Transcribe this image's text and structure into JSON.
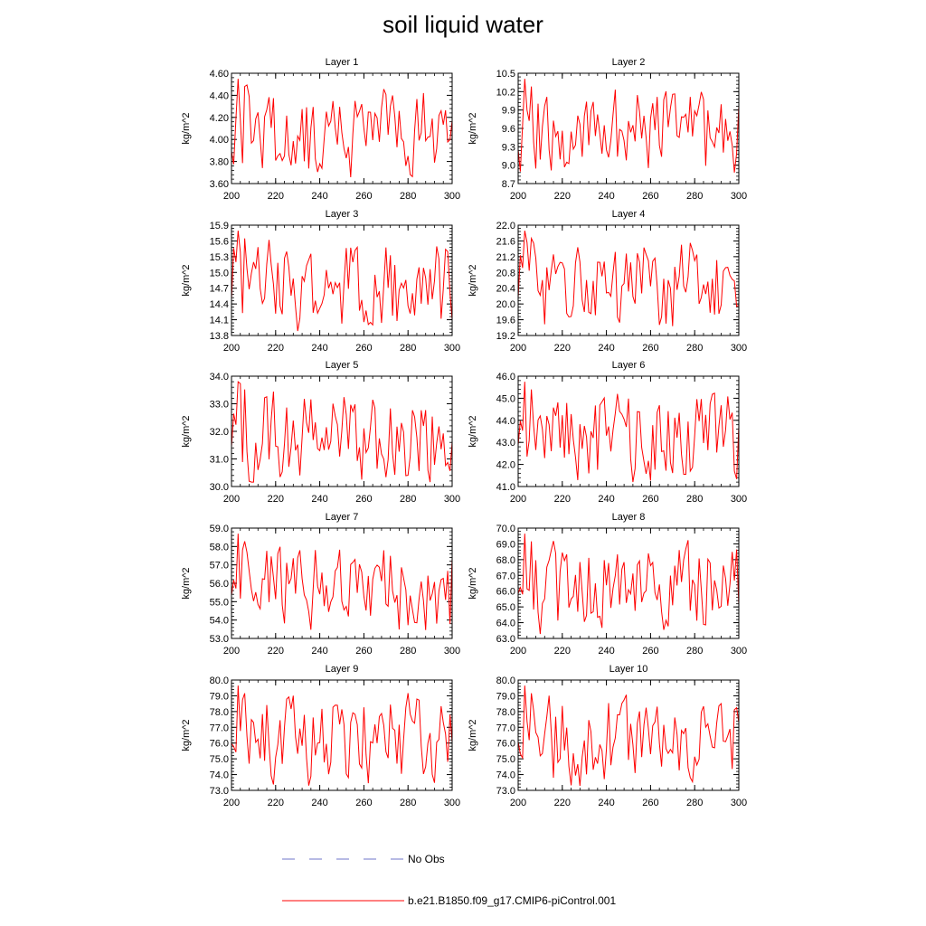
{
  "title": "soil liquid water",
  "legend": [
    {
      "label": "No Obs",
      "color": "#6f74c9",
      "style": "dashed"
    },
    {
      "label": "b.e21.B1850.f09_g17.CMIP6-piControl.001",
      "color": "#ff0000",
      "style": "solid"
    }
  ],
  "chart_data": [
    {
      "type": "line",
      "title": "Layer 1",
      "ylabel": "kg/m^2",
      "xlim": [
        200,
        300
      ],
      "xticks": [
        200,
        220,
        240,
        260,
        280,
        300
      ],
      "ylim": [
        3.6,
        4.6
      ],
      "yticks": [
        "3.60",
        "3.80",
        "4.00",
        "4.20",
        "4.40",
        "4.60"
      ],
      "series": [
        {
          "name": "b.e21.B1850.f09_g17.CMIP6-piControl.001",
          "seed": 1
        }
      ]
    },
    {
      "type": "line",
      "title": "Layer 2",
      "ylabel": "kg/m^2",
      "xlim": [
        200,
        300
      ],
      "xticks": [
        200,
        220,
        240,
        260,
        280,
        300
      ],
      "ylim": [
        8.7,
        10.5
      ],
      "yticks": [
        "8.7",
        "9.0",
        "9.3",
        "9.6",
        "9.9",
        "10.2",
        "10.5"
      ],
      "series": [
        {
          "name": "b.e21.B1850.f09_g17.CMIP6-piControl.001",
          "seed": 2
        }
      ]
    },
    {
      "type": "line",
      "title": "Layer 3",
      "ylabel": "kg/m^2",
      "xlim": [
        200,
        300
      ],
      "xticks": [
        200,
        220,
        240,
        260,
        280,
        300
      ],
      "ylim": [
        13.8,
        15.9
      ],
      "yticks": [
        "13.8",
        "14.1",
        "14.4",
        "14.7",
        "15.0",
        "15.3",
        "15.6",
        "15.9"
      ],
      "series": [
        {
          "name": "b.e21.B1850.f09_g17.CMIP6-piControl.001",
          "seed": 3
        }
      ]
    },
    {
      "type": "line",
      "title": "Layer 4",
      "ylabel": "kg/m^2",
      "xlim": [
        200,
        300
      ],
      "xticks": [
        200,
        220,
        240,
        260,
        280,
        300
      ],
      "ylim": [
        19.2,
        22.0
      ],
      "yticks": [
        "19.2",
        "19.6",
        "20.0",
        "20.4",
        "20.8",
        "21.2",
        "21.6",
        "22.0"
      ],
      "series": [
        {
          "name": "b.e21.B1850.f09_g17.CMIP6-piControl.001",
          "seed": 4
        }
      ]
    },
    {
      "type": "line",
      "title": "Layer 5",
      "ylabel": "kg/m^2",
      "xlim": [
        200,
        300
      ],
      "xticks": [
        200,
        220,
        240,
        260,
        280,
        300
      ],
      "ylim": [
        30.0,
        34.0
      ],
      "yticks": [
        "30.0",
        "31.0",
        "32.0",
        "33.0",
        "34.0"
      ],
      "series": [
        {
          "name": "b.e21.B1850.f09_g17.CMIP6-piControl.001",
          "seed": 5
        }
      ]
    },
    {
      "type": "line",
      "title": "Layer 6",
      "ylabel": "kg/m^2",
      "xlim": [
        200,
        300
      ],
      "xticks": [
        200,
        220,
        240,
        260,
        280,
        300
      ],
      "ylim": [
        41.0,
        46.0
      ],
      "yticks": [
        "41.0",
        "42.0",
        "43.0",
        "44.0",
        "45.0",
        "46.0"
      ],
      "series": [
        {
          "name": "b.e21.B1850.f09_g17.CMIP6-piControl.001",
          "seed": 6
        }
      ]
    },
    {
      "type": "line",
      "title": "Layer 7",
      "ylabel": "kg/m^2",
      "xlim": [
        200,
        300
      ],
      "xticks": [
        200,
        220,
        240,
        260,
        280,
        300
      ],
      "ylim": [
        53.0,
        59.0
      ],
      "yticks": [
        "53.0",
        "54.0",
        "55.0",
        "56.0",
        "57.0",
        "58.0",
        "59.0"
      ],
      "series": [
        {
          "name": "b.e21.B1850.f09_g17.CMIP6-piControl.001",
          "seed": 7
        }
      ]
    },
    {
      "type": "line",
      "title": "Layer 8",
      "ylabel": "kg/m^2",
      "xlim": [
        200,
        300
      ],
      "xticks": [
        200,
        220,
        240,
        260,
        280,
        300
      ],
      "ylim": [
        63.0,
        70.0
      ],
      "yticks": [
        "63.0",
        "64.0",
        "65.0",
        "66.0",
        "67.0",
        "68.0",
        "69.0",
        "70.0"
      ],
      "series": [
        {
          "name": "b.e21.B1850.f09_g17.CMIP6-piControl.001",
          "seed": 8
        }
      ]
    },
    {
      "type": "line",
      "title": "Layer 9",
      "ylabel": "kg/m^2",
      "xlim": [
        200,
        300
      ],
      "xticks": [
        200,
        220,
        240,
        260,
        280,
        300
      ],
      "ylim": [
        73.0,
        80.0
      ],
      "yticks": [
        "73.0",
        "74.0",
        "75.0",
        "76.0",
        "77.0",
        "78.0",
        "79.0",
        "80.0"
      ],
      "series": [
        {
          "name": "b.e21.B1850.f09_g17.CMIP6-piControl.001",
          "seed": 9
        }
      ]
    },
    {
      "type": "line",
      "title": "Layer 10",
      "ylabel": "kg/m^2",
      "xlim": [
        200,
        300
      ],
      "xticks": [
        200,
        220,
        240,
        260,
        280,
        300
      ],
      "ylim": [
        73.0,
        80.0
      ],
      "yticks": [
        "73.0",
        "74.0",
        "75.0",
        "76.0",
        "77.0",
        "78.0",
        "79.0",
        "80.0"
      ],
      "series": [
        {
          "name": "b.e21.B1850.f09_g17.CMIP6-piControl.001",
          "seed": 10
        }
      ]
    }
  ]
}
